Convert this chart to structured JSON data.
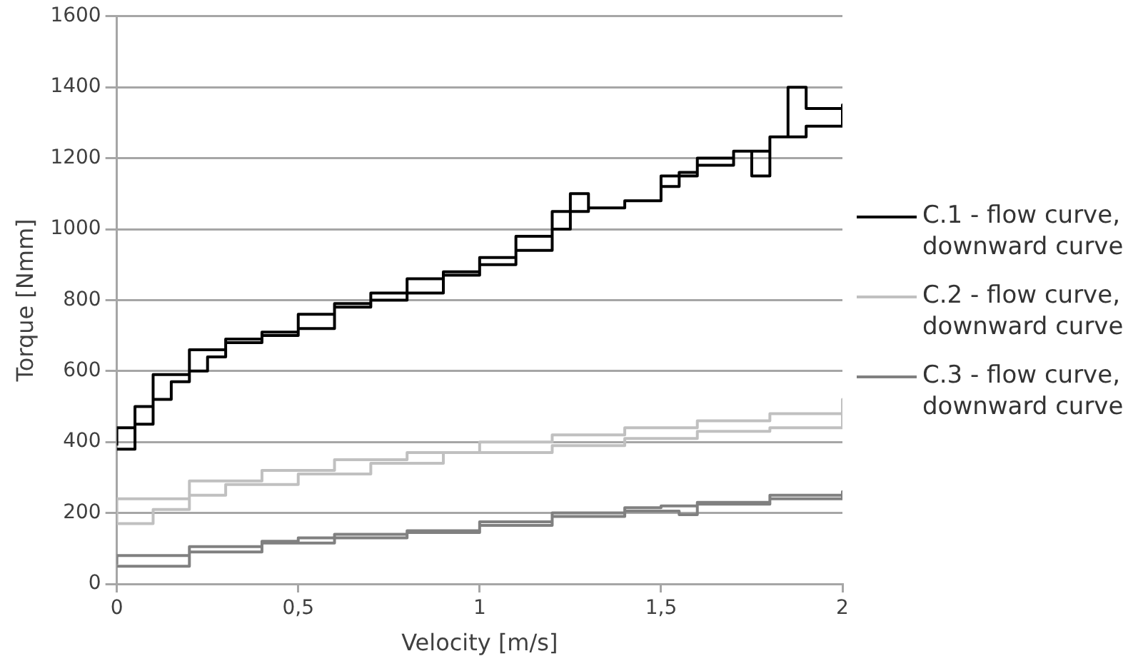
{
  "chart_data": {
    "type": "step",
    "xlabel": "Velocity [m/s]",
    "ylabel": "Torque [Nmm]",
    "xlim": [
      0,
      2
    ],
    "ylim": [
      0,
      1600
    ],
    "xticks": [
      0,
      {
        "value": 0.5,
        "label": "0,5"
      },
      1,
      {
        "value": 1.5,
        "label": "1,5"
      },
      2
    ],
    "yticks": [
      0,
      200,
      400,
      600,
      800,
      1000,
      1200,
      1400,
      1600
    ],
    "grid": "y",
    "legend": "right",
    "marker": "none",
    "line_style": "solid",
    "series": [
      {
        "name": "C.1 - flow curve, downward curve",
        "color": "#000000",
        "x": [
          0,
          0.05,
          0.1,
          0.15,
          0.2,
          0.25,
          0.3,
          0.4,
          0.5,
          0.6,
          0.7,
          0.8,
          0.9,
          1.0,
          1.1,
          1.2,
          1.25,
          1.3,
          1.4,
          1.5,
          1.6,
          1.7,
          1.8,
          1.85,
          1.9,
          2.0,
          2.0,
          1.9,
          1.8,
          1.75,
          1.7,
          1.6,
          1.55,
          1.5,
          1.4,
          1.3,
          1.2,
          1.1,
          1.0,
          0.9,
          0.8,
          0.7,
          0.6,
          0.5,
          0.4,
          0.3,
          0.2,
          0.1,
          0.05,
          0
        ],
        "values": [
          380,
          450,
          520,
          570,
          600,
          640,
          680,
          700,
          720,
          780,
          800,
          820,
          880,
          900,
          940,
          1000,
          1100,
          1060,
          1080,
          1150,
          1200,
          1220,
          1260,
          1400,
          1340,
          1350,
          1290,
          1260,
          1150,
          1220,
          1180,
          1160,
          1120,
          1080,
          1060,
          1050,
          980,
          920,
          870,
          860,
          820,
          790,
          760,
          710,
          690,
          660,
          590,
          500,
          440,
          390
        ]
      },
      {
        "name": "C.2 - flow curve, downward curve",
        "color": "#c0c0c0",
        "x": [
          0,
          0.1,
          0.2,
          0.3,
          0.5,
          0.7,
          0.9,
          1.0,
          1.2,
          1.4,
          1.6,
          1.8,
          2.0,
          2.0,
          1.8,
          1.6,
          1.4,
          1.2,
          1.0,
          0.8,
          0.6,
          0.4,
          0.2,
          0
        ],
        "values": [
          170,
          210,
          250,
          280,
          310,
          340,
          370,
          400,
          420,
          440,
          460,
          480,
          520,
          440,
          430,
          410,
          390,
          370,
          370,
          350,
          320,
          290,
          240,
          175
        ]
      },
      {
        "name": "C.3 - flow curve, downward curve",
        "color": "#808080",
        "x": [
          0,
          0.2,
          0.4,
          0.5,
          0.6,
          0.8,
          1.0,
          1.2,
          1.4,
          1.5,
          1.6,
          1.8,
          2.0,
          2.0,
          1.8,
          1.6,
          1.55,
          1.4,
          1.2,
          1.0,
          0.8,
          0.6,
          0.4,
          0.2,
          0
        ],
        "values": [
          50,
          90,
          120,
          130,
          140,
          150,
          165,
          190,
          215,
          220,
          225,
          240,
          260,
          250,
          230,
          195,
          205,
          200,
          175,
          145,
          130,
          115,
          105,
          80,
          55
        ]
      }
    ]
  }
}
